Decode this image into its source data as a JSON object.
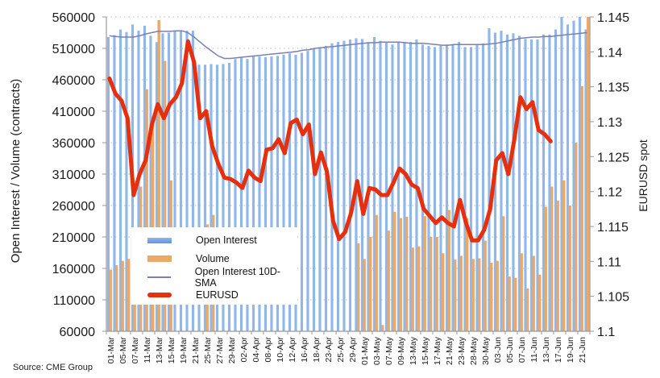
{
  "chart_data": {
    "type": "bar",
    "title": "",
    "source": "Source: CME Group",
    "ylabel": "Open Interest / Volume (contracts)",
    "y2label": "EURUSD spot",
    "ylim": [
      60000,
      560000
    ],
    "y_ticks": [
      "560000",
      "510000",
      "460000",
      "410000",
      "360000",
      "310000",
      "260000",
      "210000",
      "160000",
      "110000",
      "60000"
    ],
    "y2lim": [
      1.1,
      1.145
    ],
    "y2_ticks": [
      "1.145",
      "1.14",
      "1.135",
      "1.13",
      "1.125",
      "1.12",
      "1.115",
      "1.11",
      "1.105",
      "1.1"
    ],
    "grid": "horizontal dotted",
    "legend_position": "lower-left",
    "x_tick_labels": [
      "01-Mar",
      "05-Mar",
      "07-Mar",
      "11-Mar",
      "13-Mar",
      "15-Mar",
      "19-Mar",
      "21-Mar",
      "25-Mar",
      "27-Mar",
      "29-Mar",
      "02-Apr",
      "04-Apr",
      "08-Apr",
      "10-Apr",
      "12-Apr",
      "16-Apr",
      "18-Apr",
      "23-Apr",
      "25-Apr",
      "29-Apr",
      "01-May",
      "03-May",
      "07-May",
      "09-May",
      "13-May",
      "15-May",
      "17-May",
      "21-May",
      "23-May",
      "28-May",
      "30-May",
      "03-Jun",
      "05-Jun",
      "07-Jun",
      "11-Jun",
      "13-Jun",
      "17-Jun",
      "19-Jun",
      "21-Jun"
    ],
    "categories_count": 80,
    "series": [
      {
        "name": "Open Interest",
        "type": "bar",
        "axis": "left",
        "color": "#7aa7e4",
        "values": [
          528000,
          531000,
          540000,
          536000,
          548000,
          538000,
          546000,
          530000,
          520000,
          534000,
          535000,
          537000,
          537000,
          538000,
          538000,
          484000,
          484000,
          485000,
          484000,
          485000,
          487000,
          493000,
          495000,
          493000,
          497000,
          497000,
          496000,
          497000,
          498000,
          500000,
          502000,
          500000,
          503000,
          506000,
          510000,
          512000,
          514000,
          518000,
          520000,
          522000,
          524000,
          526000,
          525000,
          520000,
          528000,
          522000,
          520000,
          516000,
          520000,
          520000,
          520000,
          524000,
          516000,
          514000,
          512000,
          514000,
          516000,
          516000,
          520000,
          512000,
          512000,
          516000,
          518000,
          542000,
          535000,
          538000,
          532000,
          534000,
          530000,
          525000,
          524000,
          524000,
          532000,
          532000,
          540000,
          560000,
          548000,
          554000,
          560000,
          540000
        ]
      },
      {
        "name": "Volume",
        "type": "bar",
        "axis": "left",
        "color": "#eba866",
        "values": [
          158000,
          165000,
          172000,
          175000,
          190000,
          290000,
          445000,
          400000,
          555000,
          490000,
          300000,
          null,
          null,
          null,
          null,
          null,
          230000,
          245000,
          null,
          null,
          null,
          null,
          null,
          null,
          null,
          null,
          null,
          null,
          null,
          null,
          null,
          null,
          null,
          null,
          null,
          null,
          null,
          null,
          null,
          null,
          null,
          200000,
          175000,
          210000,
          245000,
          70000,
          220000,
          250000,
          240000,
          242000,
          193000,
          195000,
          243000,
          210000,
          210000,
          184000,
          253000,
          174000,
          180000,
          240000,
          175000,
          176000,
          204000,
          169000,
          172000,
          243000,
          147000,
          145000,
          184000,
          128000,
          180000,
          150000,
          258000,
          290000,
          268000,
          300000,
          260000,
          360000,
          450000,
          560000
        ]
      },
      {
        "name": "Open Interest 10D-SMA",
        "type": "line",
        "axis": "left",
        "color": "#7b7fb5",
        "values": [
          530000,
          529000,
          528000,
          528000,
          528000,
          530000,
          533000,
          535000,
          537000,
          537000,
          537000,
          538000,
          538000,
          535000,
          528000,
          520000,
          512000,
          505000,
          498000,
          494000,
          494000,
          495000,
          496000,
          497000,
          498000,
          499000,
          500000,
          501000,
          502000,
          503000,
          504000,
          505000,
          507000,
          508000,
          510000,
          511000,
          512000,
          513000,
          514000,
          515000,
          516000,
          517000,
          518000,
          519000,
          519000,
          520000,
          520000,
          520000,
          520000,
          519000,
          518000,
          518000,
          518000,
          517000,
          516000,
          515000,
          515000,
          516000,
          516000,
          516000,
          516000,
          516000,
          516000,
          517000,
          518000,
          520000,
          522000,
          524000,
          526000,
          527000,
          528000,
          528000,
          529000,
          529000,
          530000,
          531000,
          532000,
          533000,
          534000,
          535000
        ]
      },
      {
        "name": "EURUSD",
        "type": "line",
        "axis": "right",
        "color": "#e4300f",
        "values": [
          1.1362,
          1.134,
          1.133,
          1.1305,
          1.1195,
          1.1225,
          1.1245,
          1.1295,
          1.1325,
          1.1305,
          1.1325,
          1.1335,
          1.1355,
          1.1415,
          1.1385,
          1.1305,
          1.1315,
          1.1265,
          1.124,
          1.122,
          1.1218,
          1.1213,
          1.1205,
          1.123,
          1.122,
          1.1215,
          1.126,
          1.1262,
          1.1275,
          1.1255,
          1.1298,
          1.1303,
          1.1282,
          1.1296,
          1.1225,
          1.1256,
          1.1228,
          1.1158,
          1.1132,
          1.1142,
          1.117,
          1.1215,
          1.1168,
          1.1205,
          1.1203,
          1.1195,
          1.1195,
          1.1213,
          1.1233,
          1.1225,
          1.121,
          1.1205,
          1.1175,
          1.1165,
          1.1155,
          1.1163,
          1.1155,
          1.115,
          1.1188,
          1.1155,
          1.113,
          1.113,
          1.1145,
          1.1175,
          1.1245,
          1.1255,
          1.1225,
          1.1275,
          1.1335,
          1.1318,
          1.1328,
          1.1288,
          1.1282,
          1.1272,
          null,
          null,
          null,
          null,
          null,
          null
        ]
      }
    ]
  },
  "legend": {
    "items": [
      {
        "label": "Open Interest"
      },
      {
        "label": "Volume"
      },
      {
        "label": "Open Interest 10D-SMA"
      },
      {
        "label": "EURUSD"
      }
    ]
  }
}
